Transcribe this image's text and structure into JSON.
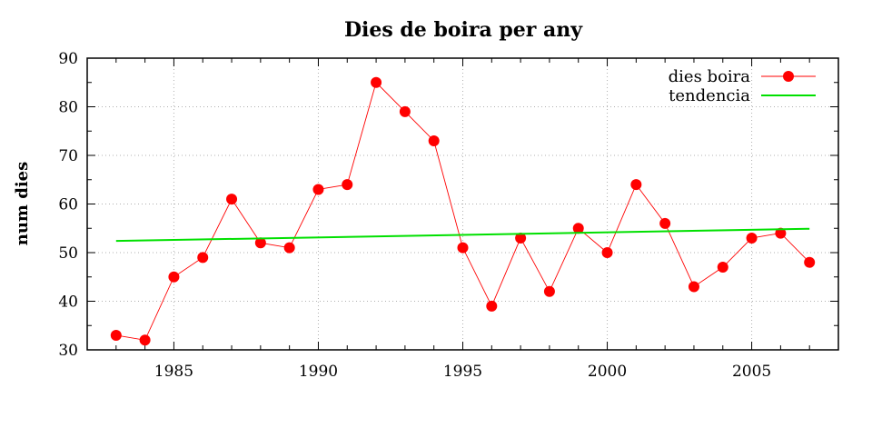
{
  "chart_data": {
    "type": "line",
    "title": "Dies de boira per any",
    "xlabel": "",
    "ylabel": "num dies",
    "xlim": [
      1982,
      2008
    ],
    "ylim": [
      30,
      90
    ],
    "x_ticks": [
      1985,
      1990,
      1995,
      2000,
      2005
    ],
    "y_ticks": [
      30,
      40,
      50,
      60,
      70,
      80,
      90
    ],
    "grid": true,
    "legend_position": "top-right",
    "series": [
      {
        "name": "dies boira",
        "color": "#ff0000",
        "marker": "circle",
        "x": [
          1983,
          1984,
          1985,
          1986,
          1987,
          1988,
          1989,
          1990,
          1991,
          1992,
          1993,
          1994,
          1995,
          1996,
          1997,
          1998,
          1999,
          2000,
          2001,
          2002,
          2003,
          2004,
          2005,
          2006,
          2007
        ],
        "y": [
          33,
          32,
          45,
          49,
          61,
          52,
          51,
          63,
          64,
          85,
          79,
          73,
          51,
          39,
          53,
          42,
          55,
          50,
          64,
          56,
          43,
          47,
          53,
          54,
          48
        ]
      },
      {
        "name": "tendencia",
        "color": "#00e000",
        "marker": "none",
        "x": [
          1983,
          2007
        ],
        "y": [
          52.4,
          54.9
        ]
      }
    ]
  }
}
